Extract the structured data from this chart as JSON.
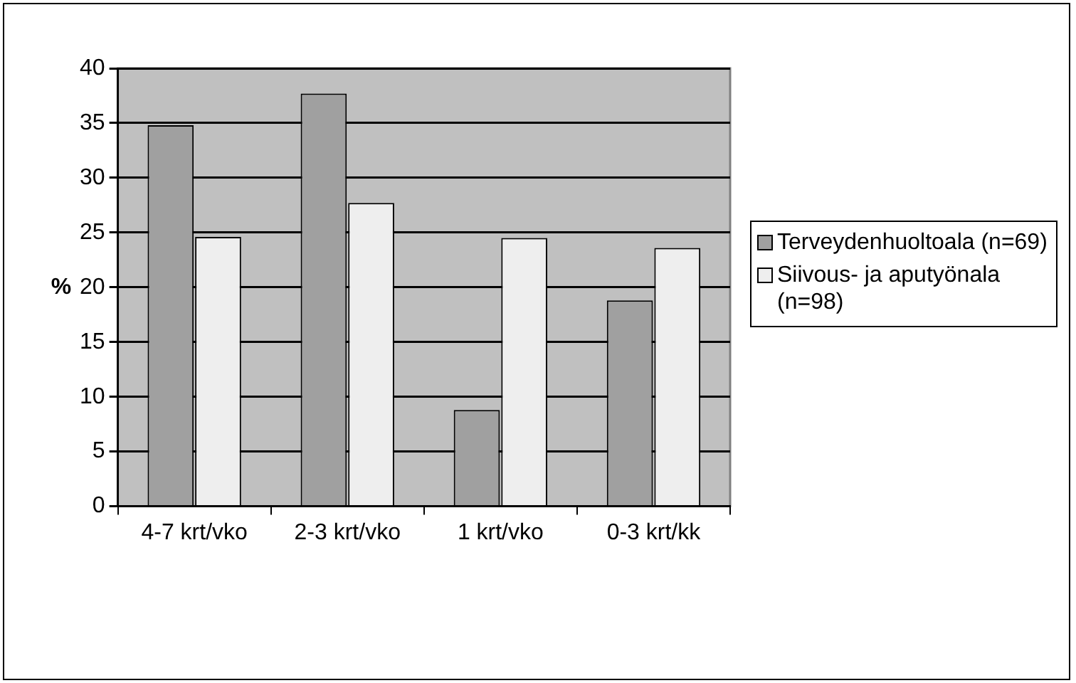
{
  "chart_data": {
    "type": "bar",
    "ylabel": "%",
    "categories": [
      "4-7 krt/vko",
      "2-3 krt/vko",
      "1 krt/vko",
      "0-3 krt/kk"
    ],
    "series": [
      {
        "name": "Terveydenhuoltoala (n=69)",
        "color": "#a0a0a0",
        "values": [
          34.8,
          37.7,
          8.8,
          18.8
        ]
      },
      {
        "name": "Siivous- ja aputyönala (n=98)",
        "color": "#eeeeee",
        "values": [
          24.6,
          27.7,
          24.5,
          23.6
        ]
      }
    ],
    "ylim": [
      0,
      40
    ],
    "yticks": [
      0,
      5,
      10,
      15,
      20,
      25,
      30,
      35,
      40
    ],
    "grid": "y",
    "legend": "right"
  }
}
